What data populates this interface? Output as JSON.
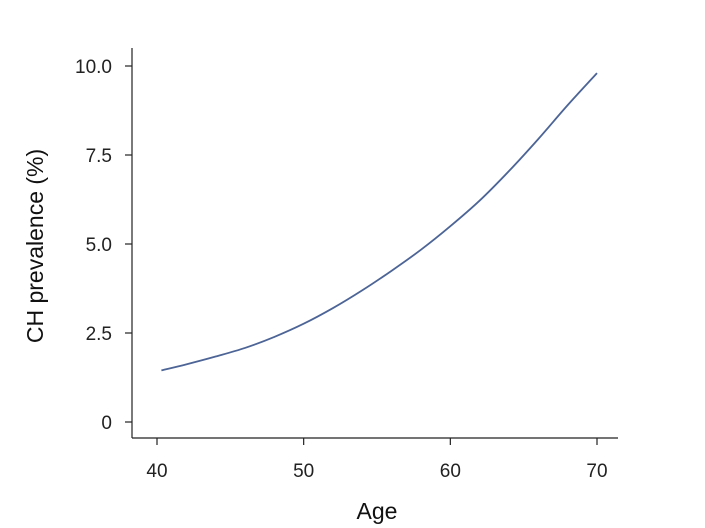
{
  "chart_data": {
    "type": "line",
    "title": "",
    "xlabel": "Age",
    "ylabel": "CH prevalence (%)",
    "xlim": [
      38.5,
      71.5
    ],
    "ylim": [
      0,
      10.5
    ],
    "x_ticks": [
      40,
      50,
      60,
      70
    ],
    "x_tick_labels": [
      "40",
      "50",
      "60",
      "70"
    ],
    "y_ticks": [
      0,
      2.5,
      5.0,
      7.5,
      10.0
    ],
    "y_tick_labels": [
      "0",
      "2.5",
      "5.0",
      "7.5",
      "10.0"
    ],
    "grid": false,
    "series": [
      {
        "color": "#4c6496",
        "x": [
          40.3,
          42,
          44,
          46,
          48,
          50,
          52,
          54,
          56,
          58,
          60,
          62,
          64,
          66,
          68,
          70
        ],
        "y": [
          1.45,
          1.62,
          1.84,
          2.08,
          2.39,
          2.76,
          3.2,
          3.7,
          4.25,
          4.84,
          5.5,
          6.22,
          7.05,
          7.95,
          8.9,
          9.8
        ]
      }
    ]
  }
}
